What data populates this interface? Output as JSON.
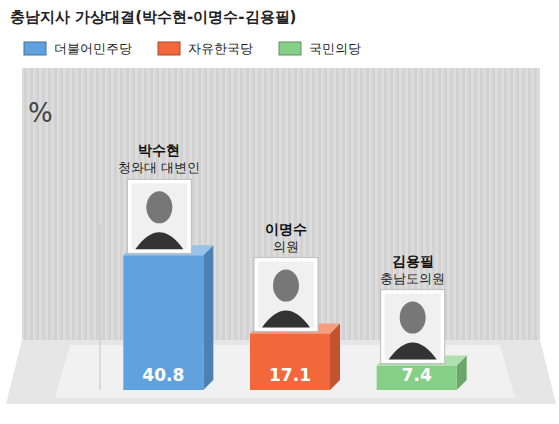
{
  "chart_data": {
    "type": "bar",
    "title": "충남지사 가상대결(박수현-이명수-김용필)",
    "ylabel": "%",
    "categories": [
      "박수현",
      "이명수",
      "김용필"
    ],
    "roles": [
      "청와대 대변인",
      "의원",
      "충남도의원"
    ],
    "series": [
      {
        "name": "더불어민주당",
        "color": "#5fa2dd",
        "values": [
          40.8,
          null,
          null
        ]
      },
      {
        "name": "자유한국당",
        "color": "#f2683a",
        "values": [
          null,
          17.1,
          null
        ]
      },
      {
        "name": "국민의당",
        "color": "#86cf86",
        "values": [
          null,
          null,
          7.4
        ]
      }
    ],
    "ylim": [
      0,
      50
    ],
    "grid": false,
    "legend": "top-left",
    "data_labels": true,
    "tick_labels": false
  }
}
